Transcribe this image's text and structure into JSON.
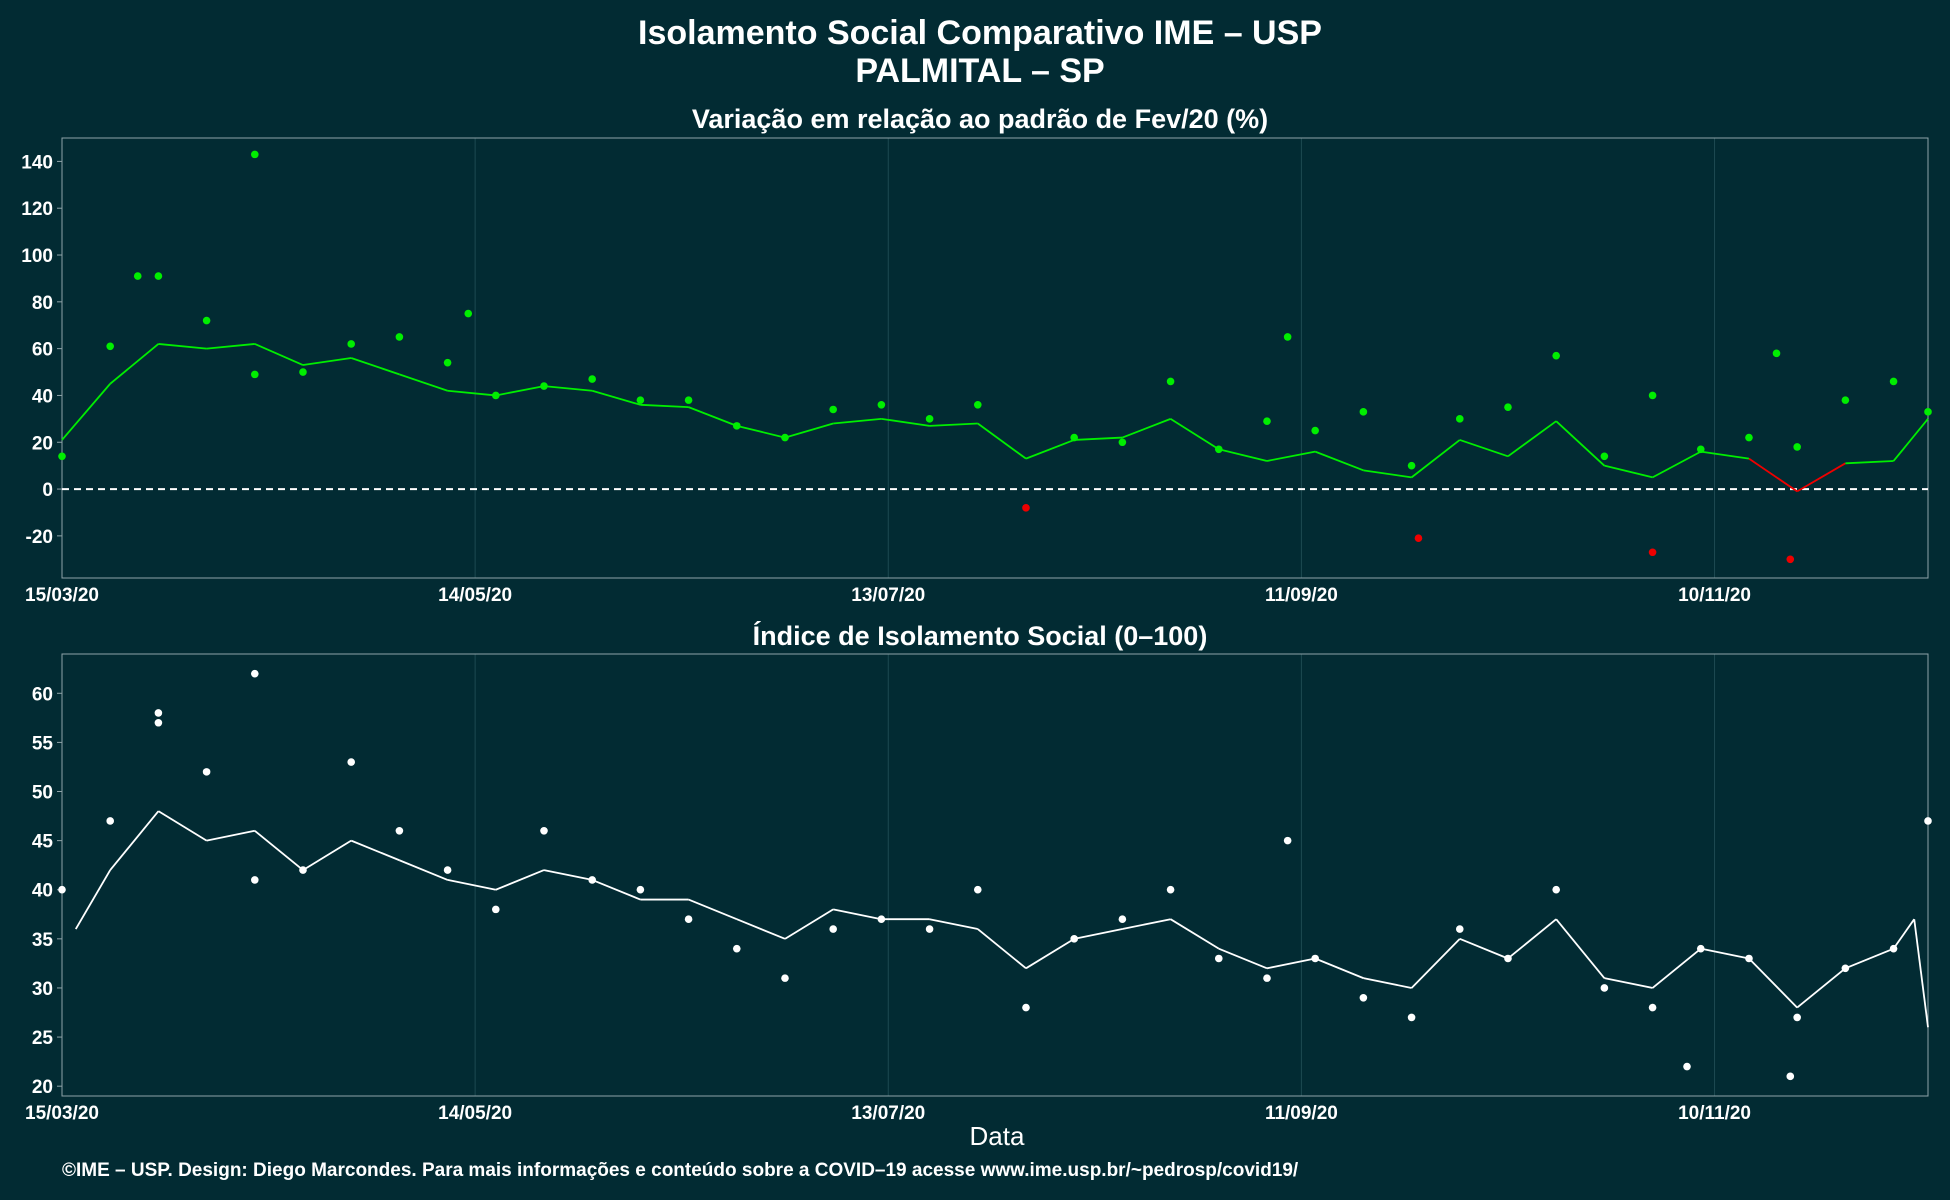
{
  "title": "Isolamento Social Comparativo IME – USP",
  "subtitle": "PALMITAL – SP",
  "xlabel": "Data",
  "footer": "©IME – USP. Design: Diego Marcondes. Para mais informações e conteúdo sobre a COVID–19 acesse www.ime.usp.br/~pedrosp/covid19/",
  "colors": {
    "background": "#022b33",
    "positive": "#00ee00",
    "negative": "#ee0000",
    "index": "#ffffff",
    "zero_line": "#ffffff"
  },
  "chart_data": [
    {
      "type": "scatter",
      "title": "Variação em relação ao padrão de Fev/20 (%)",
      "x_start": "2020-03-15",
      "x_end": "2020-12-11",
      "x_ticks": [
        "15/03/20",
        "14/05/20",
        "13/07/20",
        "11/09/20",
        "10/11/20"
      ],
      "y_ticks": [
        140,
        120,
        100,
        80,
        60,
        40,
        20,
        0,
        -20
      ],
      "ylim": [
        -38,
        150
      ],
      "reference_line": 0,
      "grid": true,
      "points_sampled_weekly": [
        {
          "x": "2020-03-15",
          "y": 14
        },
        {
          "x": "2020-03-22",
          "y": 61
        },
        {
          "x": "2020-03-29",
          "y": 91
        },
        {
          "x": "2020-04-05",
          "y": 72
        },
        {
          "x": "2020-04-12",
          "y": 49
        },
        {
          "x": "2020-04-19",
          "y": 50
        },
        {
          "x": "2020-04-26",
          "y": 62
        },
        {
          "x": "2020-05-03",
          "y": 65
        },
        {
          "x": "2020-05-10",
          "y": 54
        },
        {
          "x": "2020-05-17",
          "y": 40
        },
        {
          "x": "2020-05-24",
          "y": 44
        },
        {
          "x": "2020-05-31",
          "y": 47
        },
        {
          "x": "2020-06-07",
          "y": 38
        },
        {
          "x": "2020-06-14",
          "y": 38
        },
        {
          "x": "2020-06-21",
          "y": 27
        },
        {
          "x": "2020-06-28",
          "y": 22
        },
        {
          "x": "2020-07-05",
          "y": 34
        },
        {
          "x": "2020-07-12",
          "y": 36
        },
        {
          "x": "2020-07-19",
          "y": 30
        },
        {
          "x": "2020-07-26",
          "y": 36
        },
        {
          "x": "2020-08-02",
          "y": -8
        },
        {
          "x": "2020-08-09",
          "y": 22
        },
        {
          "x": "2020-08-16",
          "y": 20
        },
        {
          "x": "2020-08-23",
          "y": 46
        },
        {
          "x": "2020-08-30",
          "y": 17
        },
        {
          "x": "2020-09-06",
          "y": 29
        },
        {
          "x": "2020-09-13",
          "y": 25
        },
        {
          "x": "2020-09-20",
          "y": 33
        },
        {
          "x": "2020-09-27",
          "y": 10
        },
        {
          "x": "2020-10-04",
          "y": 30
        },
        {
          "x": "2020-10-11",
          "y": 35
        },
        {
          "x": "2020-10-18",
          "y": 57
        },
        {
          "x": "2020-10-25",
          "y": 14
        },
        {
          "x": "2020-11-01",
          "y": 40
        },
        {
          "x": "2020-11-08",
          "y": 17
        },
        {
          "x": "2020-11-15",
          "y": 22
        },
        {
          "x": "2020-11-22",
          "y": 18
        },
        {
          "x": "2020-11-29",
          "y": 38
        },
        {
          "x": "2020-12-06",
          "y": 46
        },
        {
          "x": "2020-12-11",
          "y": 33
        }
      ],
      "notable_points": [
        {
          "x": "2020-04-12",
          "y": 143
        },
        {
          "x": "2020-03-26",
          "y": 91
        },
        {
          "x": "2020-05-13",
          "y": 75
        },
        {
          "x": "2020-09-09",
          "y": 65
        },
        {
          "x": "2020-11-19",
          "y": 58
        },
        {
          "x": "2020-11-21",
          "y": -30
        },
        {
          "x": "2020-11-01",
          "y": -27
        },
        {
          "x": "2020-09-28",
          "y": -21
        }
      ],
      "moving_average": [
        {
          "x": "2020-03-15",
          "y": 21
        },
        {
          "x": "2020-03-22",
          "y": 45
        },
        {
          "x": "2020-03-29",
          "y": 62
        },
        {
          "x": "2020-04-05",
          "y": 60
        },
        {
          "x": "2020-04-12",
          "y": 62
        },
        {
          "x": "2020-04-19",
          "y": 53
        },
        {
          "x": "2020-04-26",
          "y": 56
        },
        {
          "x": "2020-05-03",
          "y": 49
        },
        {
          "x": "2020-05-10",
          "y": 42
        },
        {
          "x": "2020-05-17",
          "y": 40
        },
        {
          "x": "2020-05-24",
          "y": 44
        },
        {
          "x": "2020-05-31",
          "y": 42
        },
        {
          "x": "2020-06-07",
          "y": 36
        },
        {
          "x": "2020-06-14",
          "y": 35
        },
        {
          "x": "2020-06-21",
          "y": 27
        },
        {
          "x": "2020-06-28",
          "y": 22
        },
        {
          "x": "2020-07-05",
          "y": 28
        },
        {
          "x": "2020-07-12",
          "y": 30
        },
        {
          "x": "2020-07-19",
          "y": 27
        },
        {
          "x": "2020-07-26",
          "y": 28
        },
        {
          "x": "2020-08-02",
          "y": 13
        },
        {
          "x": "2020-08-09",
          "y": 21
        },
        {
          "x": "2020-08-16",
          "y": 22
        },
        {
          "x": "2020-08-23",
          "y": 30
        },
        {
          "x": "2020-08-30",
          "y": 17
        },
        {
          "x": "2020-09-06",
          "y": 12
        },
        {
          "x": "2020-09-13",
          "y": 16
        },
        {
          "x": "2020-09-20",
          "y": 8
        },
        {
          "x": "2020-09-27",
          "y": 5
        },
        {
          "x": "2020-10-04",
          "y": 21
        },
        {
          "x": "2020-10-11",
          "y": 14
        },
        {
          "x": "2020-10-18",
          "y": 29
        },
        {
          "x": "2020-10-25",
          "y": 10
        },
        {
          "x": "2020-11-01",
          "y": 5
        },
        {
          "x": "2020-11-08",
          "y": 16
        },
        {
          "x": "2020-11-15",
          "y": 13
        },
        {
          "x": "2020-11-22",
          "y": -1
        },
        {
          "x": "2020-11-29",
          "y": 11
        },
        {
          "x": "2020-12-06",
          "y": 12
        },
        {
          "x": "2020-12-11",
          "y": 30
        }
      ]
    },
    {
      "type": "scatter",
      "title": "Índice de Isolamento Social (0–100)",
      "x_start": "2020-03-15",
      "x_end": "2020-12-11",
      "x_ticks": [
        "15/03/20",
        "14/05/20",
        "13/07/20",
        "11/09/20",
        "10/11/20"
      ],
      "y_ticks": [
        60,
        55,
        50,
        45,
        40,
        35,
        30,
        25,
        20
      ],
      "ylim": [
        19,
        64
      ],
      "grid": true,
      "points_sampled_weekly": [
        {
          "x": "2020-03-15",
          "y": 40
        },
        {
          "x": "2020-03-22",
          "y": 47
        },
        {
          "x": "2020-03-29",
          "y": 57
        },
        {
          "x": "2020-04-05",
          "y": 52
        },
        {
          "x": "2020-04-12",
          "y": 41
        },
        {
          "x": "2020-04-19",
          "y": 42
        },
        {
          "x": "2020-04-26",
          "y": 53
        },
        {
          "x": "2020-05-03",
          "y": 46
        },
        {
          "x": "2020-05-10",
          "y": 42
        },
        {
          "x": "2020-05-17",
          "y": 38
        },
        {
          "x": "2020-05-24",
          "y": 46
        },
        {
          "x": "2020-05-31",
          "y": 41
        },
        {
          "x": "2020-06-07",
          "y": 40
        },
        {
          "x": "2020-06-14",
          "y": 37
        },
        {
          "x": "2020-06-21",
          "y": 34
        },
        {
          "x": "2020-06-28",
          "y": 31
        },
        {
          "x": "2020-07-05",
          "y": 36
        },
        {
          "x": "2020-07-12",
          "y": 37
        },
        {
          "x": "2020-07-19",
          "y": 36
        },
        {
          "x": "2020-07-26",
          "y": 40
        },
        {
          "x": "2020-08-02",
          "y": 28
        },
        {
          "x": "2020-08-09",
          "y": 35
        },
        {
          "x": "2020-08-16",
          "y": 37
        },
        {
          "x": "2020-08-23",
          "y": 40
        },
        {
          "x": "2020-08-30",
          "y": 33
        },
        {
          "x": "2020-09-06",
          "y": 31
        },
        {
          "x": "2020-09-13",
          "y": 33
        },
        {
          "x": "2020-09-20",
          "y": 29
        },
        {
          "x": "2020-09-27",
          "y": 27
        },
        {
          "x": "2020-10-04",
          "y": 36
        },
        {
          "x": "2020-10-11",
          "y": 33
        },
        {
          "x": "2020-10-18",
          "y": 40
        },
        {
          "x": "2020-10-25",
          "y": 30
        },
        {
          "x": "2020-11-01",
          "y": 28
        },
        {
          "x": "2020-11-08",
          "y": 34
        },
        {
          "x": "2020-11-15",
          "y": 33
        },
        {
          "x": "2020-11-22",
          "y": 27
        },
        {
          "x": "2020-11-29",
          "y": 32
        },
        {
          "x": "2020-12-06",
          "y": 34
        },
        {
          "x": "2020-12-11",
          "y": 47
        }
      ],
      "notable_points": [
        {
          "x": "2020-04-12",
          "y": 62
        },
        {
          "x": "2020-03-29",
          "y": 58
        },
        {
          "x": "2020-09-09",
          "y": 45
        },
        {
          "x": "2020-11-21",
          "y": 21
        },
        {
          "x": "2020-11-06",
          "y": 22
        }
      ],
      "moving_average": [
        {
          "x": "2020-03-17",
          "y": 36
        },
        {
          "x": "2020-03-22",
          "y": 42
        },
        {
          "x": "2020-03-29",
          "y": 48
        },
        {
          "x": "2020-04-05",
          "y": 45
        },
        {
          "x": "2020-04-12",
          "y": 46
        },
        {
          "x": "2020-04-19",
          "y": 42
        },
        {
          "x": "2020-04-26",
          "y": 45
        },
        {
          "x": "2020-05-03",
          "y": 43
        },
        {
          "x": "2020-05-10",
          "y": 41
        },
        {
          "x": "2020-05-17",
          "y": 40
        },
        {
          "x": "2020-05-24",
          "y": 42
        },
        {
          "x": "2020-05-31",
          "y": 41
        },
        {
          "x": "2020-06-07",
          "y": 39
        },
        {
          "x": "2020-06-14",
          "y": 39
        },
        {
          "x": "2020-06-21",
          "y": 37
        },
        {
          "x": "2020-06-28",
          "y": 35
        },
        {
          "x": "2020-07-05",
          "y": 38
        },
        {
          "x": "2020-07-12",
          "y": 37
        },
        {
          "x": "2020-07-19",
          "y": 37
        },
        {
          "x": "2020-07-26",
          "y": 36
        },
        {
          "x": "2020-08-02",
          "y": 32
        },
        {
          "x": "2020-08-09",
          "y": 35
        },
        {
          "x": "2020-08-16",
          "y": 36
        },
        {
          "x": "2020-08-23",
          "y": 37
        },
        {
          "x": "2020-08-30",
          "y": 34
        },
        {
          "x": "2020-09-06",
          "y": 32
        },
        {
          "x": "2020-09-13",
          "y": 33
        },
        {
          "x": "2020-09-20",
          "y": 31
        },
        {
          "x": "2020-09-27",
          "y": 30
        },
        {
          "x": "2020-10-04",
          "y": 35
        },
        {
          "x": "2020-10-11",
          "y": 33
        },
        {
          "x": "2020-10-18",
          "y": 37
        },
        {
          "x": "2020-10-25",
          "y": 31
        },
        {
          "x": "2020-11-01",
          "y": 30
        },
        {
          "x": "2020-11-08",
          "y": 34
        },
        {
          "x": "2020-11-15",
          "y": 33
        },
        {
          "x": "2020-11-22",
          "y": 28
        },
        {
          "x": "2020-11-29",
          "y": 32
        },
        {
          "x": "2020-12-06",
          "y": 34
        },
        {
          "x": "2020-12-09",
          "y": 37
        },
        {
          "x": "2020-12-11",
          "y": 26
        }
      ]
    }
  ]
}
